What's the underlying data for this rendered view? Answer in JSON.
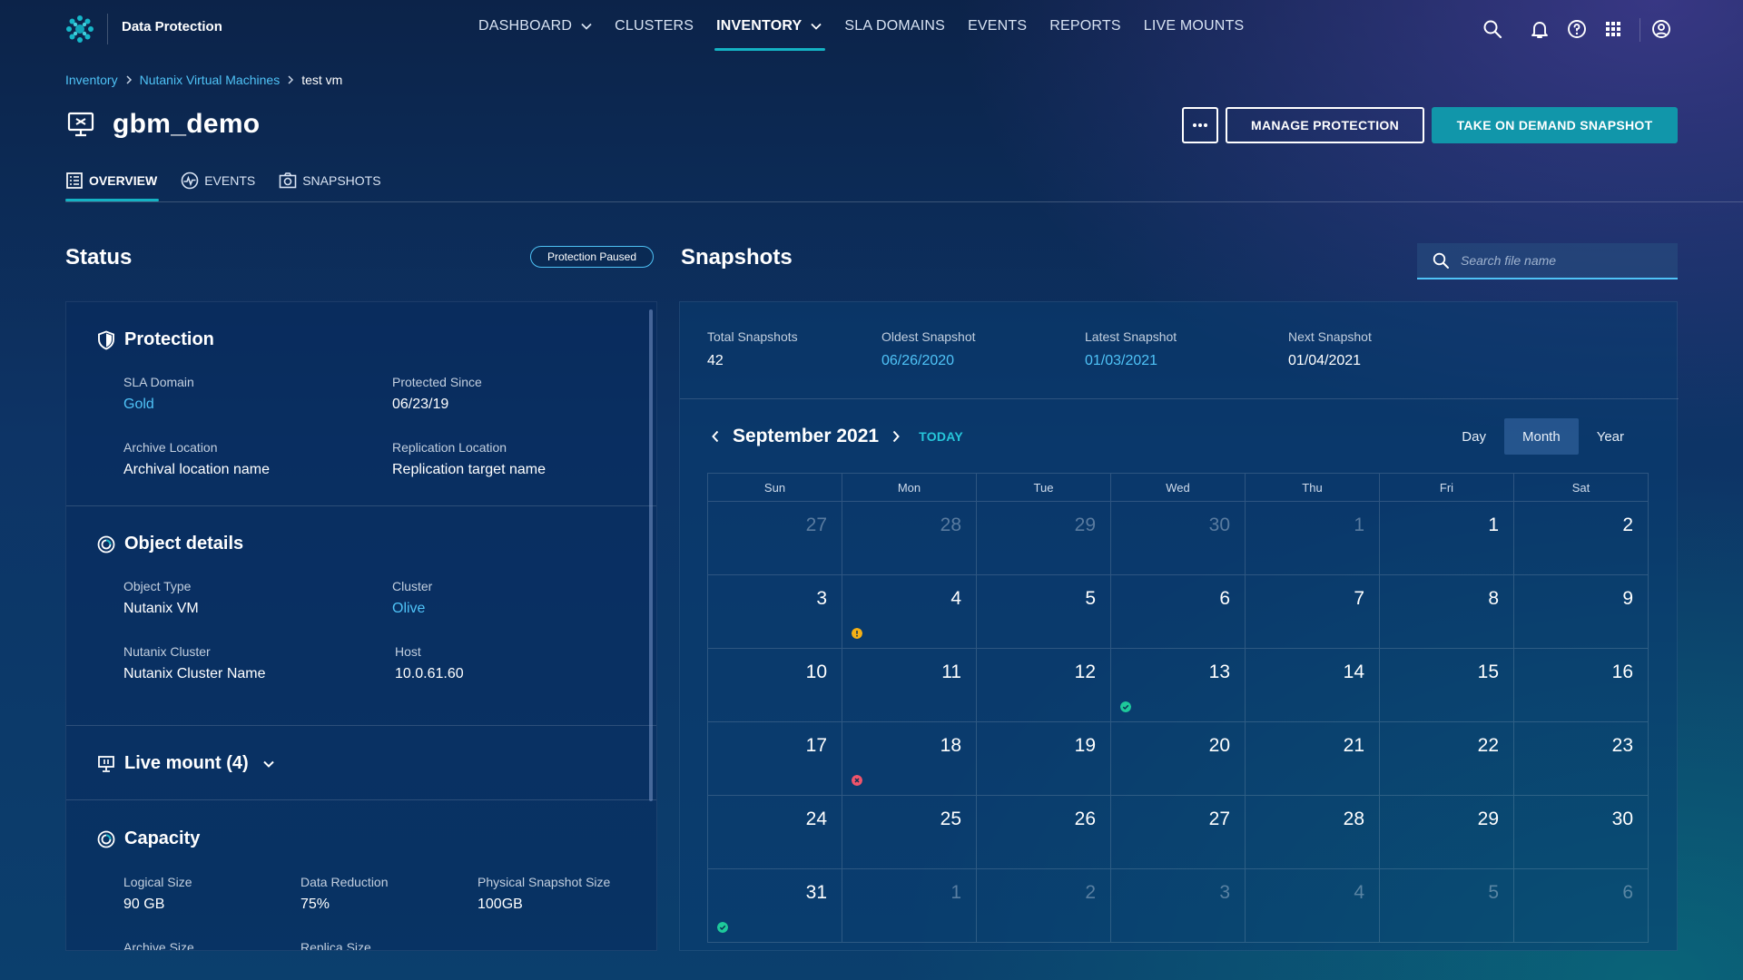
{
  "topbar": {
    "brand": "Data Protection",
    "nav": [
      {
        "label": "DASHBOARD",
        "dropdown": true,
        "active": false
      },
      {
        "label": "CLUSTERS",
        "dropdown": false,
        "active": false
      },
      {
        "label": "INVENTORY",
        "dropdown": true,
        "active": true
      },
      {
        "label": "SLA DOMAINS",
        "dropdown": false,
        "active": false
      },
      {
        "label": "EVENTS",
        "dropdown": false,
        "active": false
      },
      {
        "label": "REPORTS",
        "dropdown": false,
        "active": false
      },
      {
        "label": "LIVE MOUNTS",
        "dropdown": false,
        "active": false
      }
    ],
    "icons": [
      "search-icon",
      "bell-icon",
      "help-icon",
      "apps-grid-icon",
      "account-icon"
    ]
  },
  "breadcrumb": {
    "items": [
      "Inventory",
      "Nutanix Virtual Machines"
    ],
    "current": "test vm"
  },
  "header": {
    "title": "gbm_demo",
    "more_icon": "more-horizontal-icon",
    "manage_label": "MANAGE PROTECTION",
    "snapshot_label": "TAKE ON DEMAND SNAPSHOT"
  },
  "tabs": [
    {
      "label": "OVERVIEW",
      "icon": "overview-icon",
      "active": true
    },
    {
      "label": "EVENTS",
      "icon": "activity-icon",
      "active": false
    },
    {
      "label": "SNAPSHOTS",
      "icon": "camera-icon",
      "active": false
    }
  ],
  "status": {
    "title": "Status",
    "badge": "Protection Paused",
    "protection": {
      "title": "Protection",
      "sla_label": "SLA Domain",
      "sla_value": "Gold",
      "since_label": "Protected Since",
      "since_value": "06/23/19",
      "archive_label": "Archive Location",
      "archive_value": "Archival location name",
      "replication_label": "Replication Location",
      "replication_value": "Replication target name"
    },
    "object": {
      "title": "Object details",
      "type_label": "Object Type",
      "type_value": "Nutanix VM",
      "cluster_label": "Cluster",
      "cluster_value": "Olive",
      "ncluster_label": "Nutanix Cluster",
      "ncluster_value": "Nutanix Cluster Name",
      "host_label": "Host",
      "host_value": "10.0.61.60"
    },
    "live_mount": {
      "title": "Live mount (4)"
    },
    "capacity": {
      "title": "Capacity",
      "logical_label": "Logical Size",
      "logical_value": "90 GB",
      "reduction_label": "Data Reduction",
      "reduction_value": "75%",
      "physical_label": "Physical Snapshot Size",
      "physical_value": "100GB",
      "archive_label": "Archive Size",
      "replica_label": "Replica Size"
    }
  },
  "snapshots": {
    "title": "Snapshots",
    "search_placeholder": "Search file name",
    "stats": {
      "total_label": "Total Snapshots",
      "total_value": "42",
      "oldest_label": "Oldest Snapshot",
      "oldest_value": "06/26/2020",
      "latest_label": "Latest Snapshot",
      "latest_value": "01/03/2021",
      "next_label": "Next Snapshot",
      "next_value": "01/04/2021"
    },
    "calendar": {
      "month_label": "September 2021",
      "today_label": "TODAY",
      "views": [
        "Day",
        "Month",
        "Year"
      ],
      "active_view": "Month",
      "weekdays": [
        "Sun",
        "Mon",
        "Tue",
        "Wed",
        "Thu",
        "Fri",
        "Sat"
      ],
      "weeks": [
        [
          {
            "d": "27",
            "m": true
          },
          {
            "d": "28",
            "m": true
          },
          {
            "d": "29",
            "m": true
          },
          {
            "d": "30",
            "m": true
          },
          {
            "d": "1",
            "m": true
          },
          {
            "d": "1"
          },
          {
            "d": "2"
          }
        ],
        [
          {
            "d": "3"
          },
          {
            "d": "4",
            "status": "warning"
          },
          {
            "d": "5"
          },
          {
            "d": "6"
          },
          {
            "d": "7"
          },
          {
            "d": "8"
          },
          {
            "d": "9"
          }
        ],
        [
          {
            "d": "10"
          },
          {
            "d": "11"
          },
          {
            "d": "12"
          },
          {
            "d": "13",
            "status": "success"
          },
          {
            "d": "14"
          },
          {
            "d": "15"
          },
          {
            "d": "16"
          }
        ],
        [
          {
            "d": "17"
          },
          {
            "d": "18",
            "status": "error"
          },
          {
            "d": "19"
          },
          {
            "d": "20"
          },
          {
            "d": "21"
          },
          {
            "d": "22"
          },
          {
            "d": "23"
          }
        ],
        [
          {
            "d": "24"
          },
          {
            "d": "25"
          },
          {
            "d": "26"
          },
          {
            "d": "27"
          },
          {
            "d": "28"
          },
          {
            "d": "29"
          },
          {
            "d": "30"
          }
        ],
        [
          {
            "d": "31",
            "status": "success"
          },
          {
            "d": "1",
            "m": true
          },
          {
            "d": "2",
            "m": true
          },
          {
            "d": "3",
            "m": true
          },
          {
            "d": "4",
            "m": true
          },
          {
            "d": "5",
            "m": true
          },
          {
            "d": "6",
            "m": true
          }
        ]
      ]
    }
  },
  "colors": {
    "accent": "#14b3c4",
    "link": "#4fc3f7",
    "success": "#1ec99b",
    "warning": "#f5b015",
    "error": "#f0546b"
  }
}
